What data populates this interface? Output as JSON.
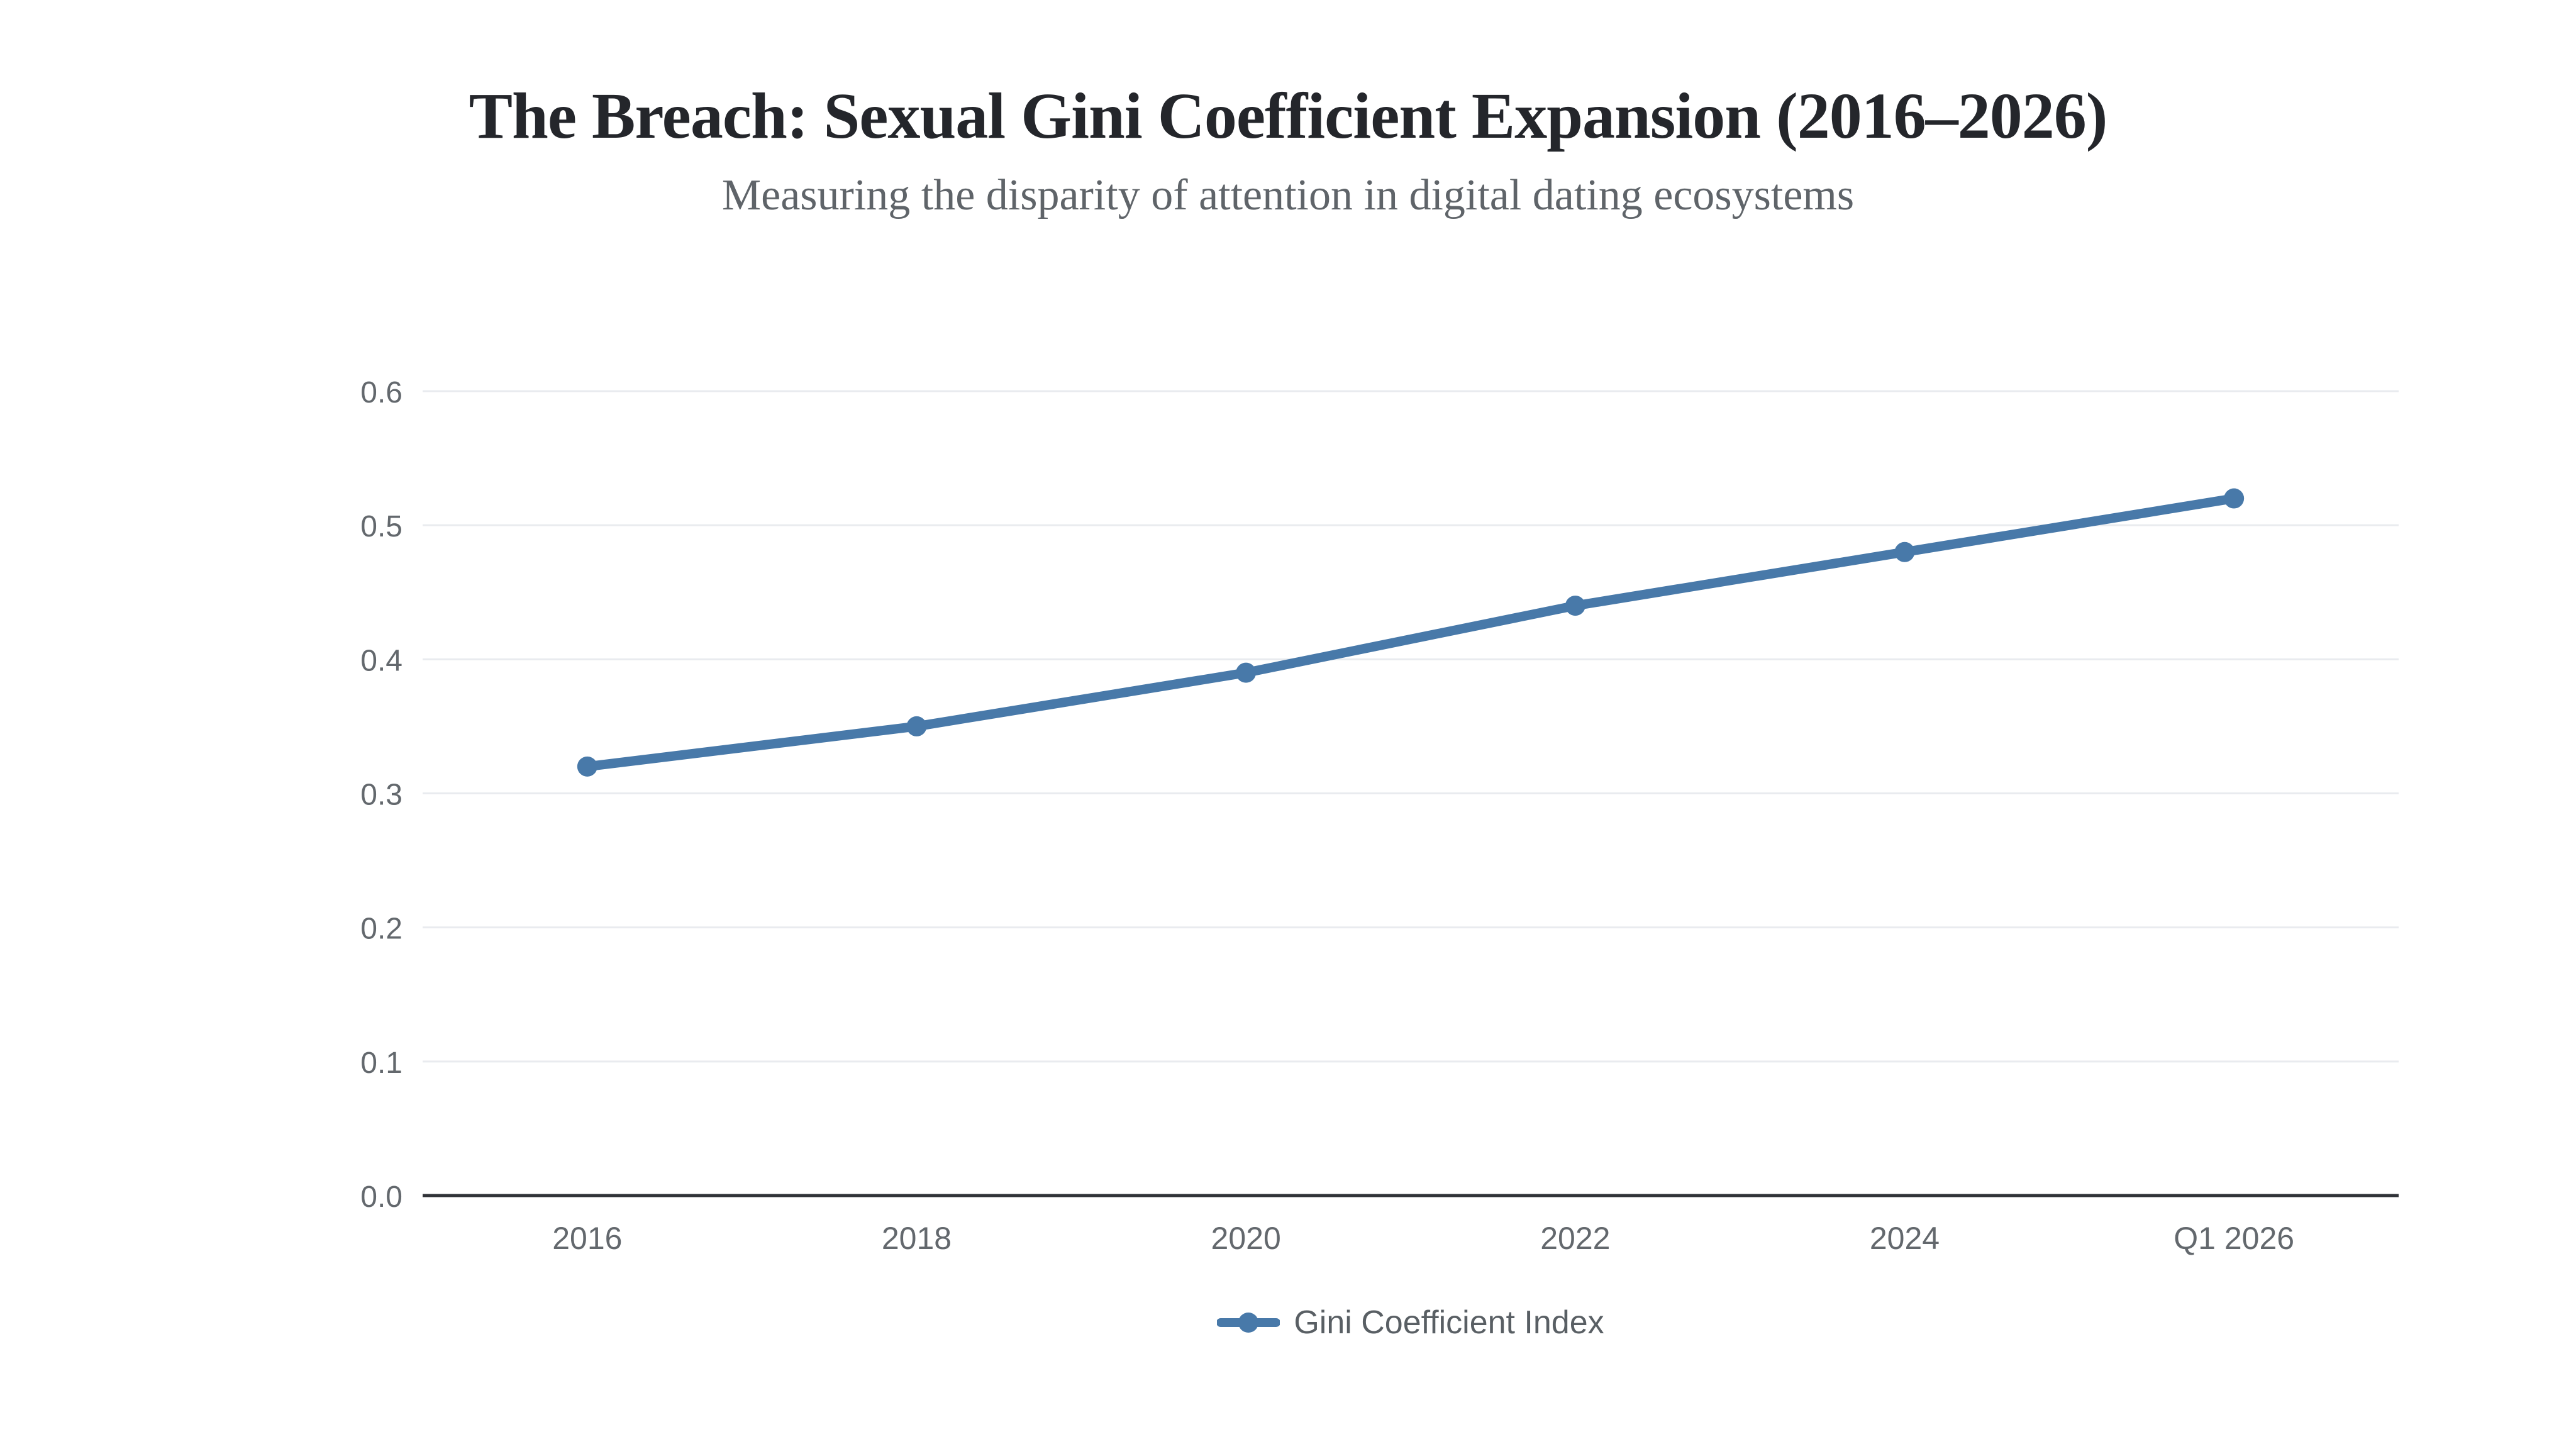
{
  "header": {
    "title": "The Breach: Sexual Gini Coefficient Expansion (2016–2026)",
    "subtitle": "Measuring the disparity of attention in digital dating ecosystems"
  },
  "chart_data": {
    "type": "line",
    "title": "The Breach: Sexual Gini Coefficient Expansion (2016–2026)",
    "subtitle": "Measuring the disparity of attention in digital dating ecosystems",
    "categories": [
      "2016",
      "2018",
      "2020",
      "2022",
      "2024",
      "Q1 2026"
    ],
    "series": [
      {
        "name": "Gini Coefficient Index",
        "values": [
          0.32,
          0.35,
          0.39,
          0.44,
          0.48,
          0.52
        ],
        "color": "#4879a9"
      }
    ],
    "xlabel": "",
    "ylabel": "",
    "ylim": [
      0,
      0.6
    ],
    "yticks": [
      0,
      0.1,
      0.2,
      0.3,
      0.4,
      0.5,
      0.6
    ],
    "grid": true,
    "legend_position": "bottom"
  },
  "colors": {
    "accent": "#4879a9",
    "grid": "#e9ebef",
    "axis": "#303338",
    "tick_label": "#63686d",
    "title": "#24262b",
    "subtitle": "#5f6469",
    "legend_text": "#595f64",
    "background": "#ffffff"
  }
}
